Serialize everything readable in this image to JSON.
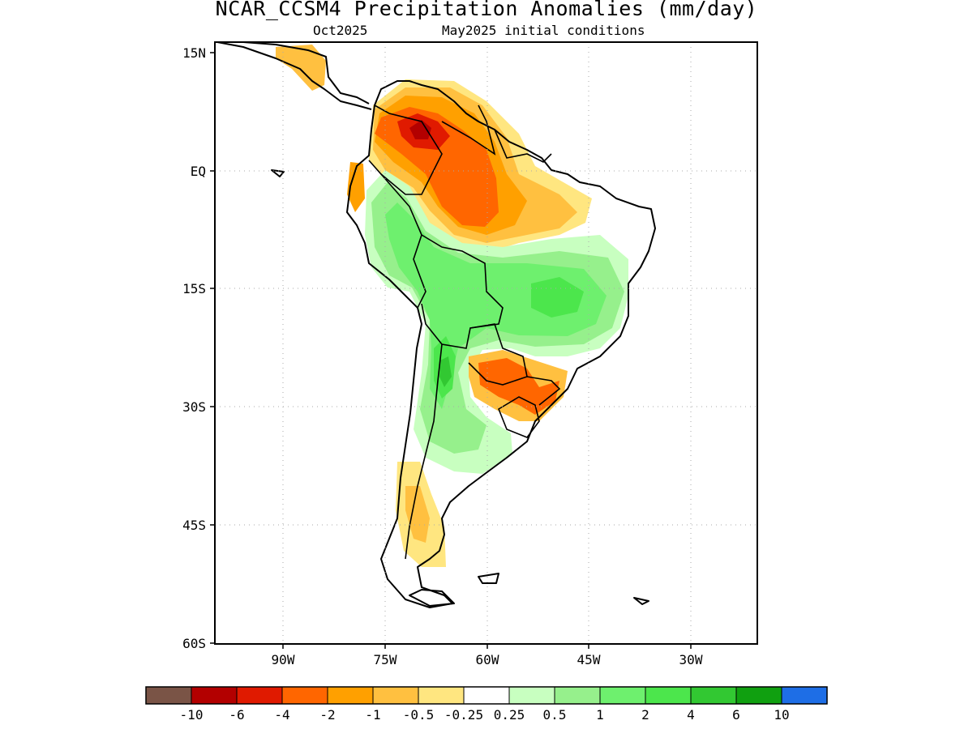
{
  "header": {
    "title": "NCAR_CCSM4 Precipitation Anomalies (mm/day)",
    "subtitle_left": "Oct2025",
    "subtitle_right": "May2025 initial conditions"
  },
  "map": {
    "lat_labels": [
      "15N",
      "EQ",
      "15S",
      "30S",
      "45S",
      "60S"
    ],
    "lon_labels": [
      "90W",
      "75W",
      "60W",
      "45W",
      "30W"
    ],
    "grid_lines": "dotted"
  },
  "colorbar": {
    "colors": [
      "#7a5446",
      "#b30000",
      "#e01a00",
      "#ff6600",
      "#ffa000",
      "#ffc040",
      "#ffe680",
      "#ffffff",
      "#c8ffc0",
      "#96f08c",
      "#6ef06e",
      "#4ce64c",
      "#32c832",
      "#10a010",
      "#1e6ee6"
    ],
    "tick_labels": [
      "-10",
      "-6",
      "-4",
      "-2",
      "-1",
      "-0.5",
      "-0.25",
      "0.25",
      "0.5",
      "1",
      "2",
      "4",
      "6",
      "10"
    ]
  }
}
